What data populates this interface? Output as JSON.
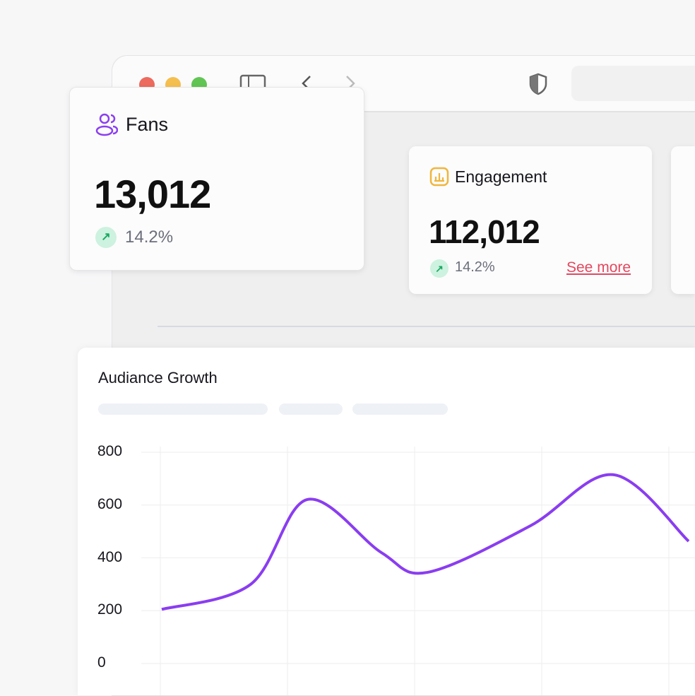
{
  "browser": {
    "icons": [
      "close-dot",
      "minimize-dot",
      "zoom-dot",
      "sidebar-icon",
      "back-icon",
      "forward-icon",
      "shield-icon"
    ]
  },
  "cards": [
    {
      "label": "Fans",
      "value": "13,012",
      "change": "14.2%",
      "icon": "users-icon",
      "icon_color": "#8b3ff0"
    },
    {
      "label": "Engagement",
      "value": "112,012",
      "change": "14.2%",
      "link": "See more",
      "icon": "bar-chart-icon",
      "icon_color": "#f0b63c"
    }
  ],
  "chart_data": {
    "type": "line",
    "title": "Audiance Growth",
    "yticks": [
      "800",
      "600",
      "400",
      "200",
      "0"
    ],
    "ylim": [
      0,
      800
    ],
    "grid": true,
    "color": "#8a3df0",
    "y": [
      205,
      300,
      621,
      420,
      345,
      520,
      715,
      463
    ]
  }
}
